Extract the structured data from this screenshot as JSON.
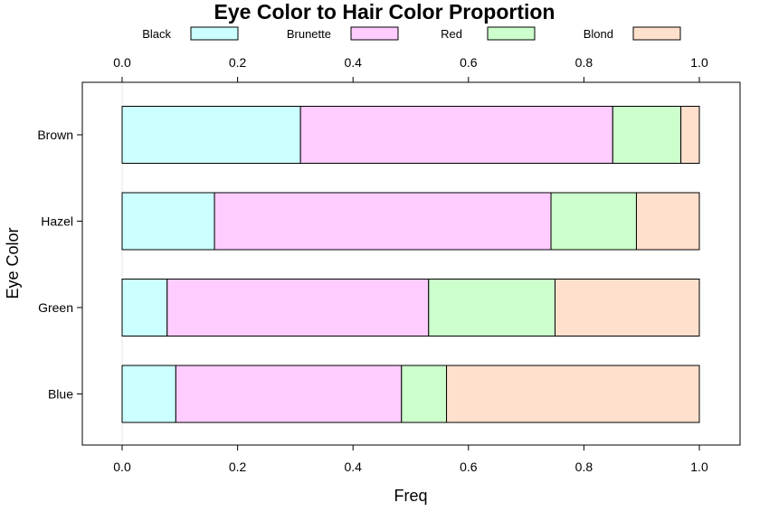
{
  "chart_data": {
    "type": "bar",
    "orientation": "horizontal",
    "stacked": true,
    "title": "Eye Color to Hair Color Proportion",
    "xlabel": "Freq",
    "ylabel": "Eye Color",
    "xlim": [
      0,
      1
    ],
    "xticks": [
      "0.0",
      "0.2",
      "0.4",
      "0.6",
      "0.8",
      "1.0"
    ],
    "categories": [
      "Brown",
      "Hazel",
      "Green",
      "Blue"
    ],
    "legend_position": "top",
    "grid": false,
    "series": [
      {
        "name": "Black",
        "color": "#ccffff",
        "values": [
          0.309,
          0.16,
          0.078,
          0.093
        ]
      },
      {
        "name": "Brunette",
        "color": "#ffccff",
        "values": [
          0.541,
          0.583,
          0.453,
          0.391
        ]
      },
      {
        "name": "Red",
        "color": "#ccffcc",
        "values": [
          0.118,
          0.148,
          0.219,
          0.078
        ]
      },
      {
        "name": "Blond",
        "color": "#ffe0cc",
        "values": [
          0.032,
          0.109,
          0.25,
          0.438
        ]
      }
    ]
  }
}
